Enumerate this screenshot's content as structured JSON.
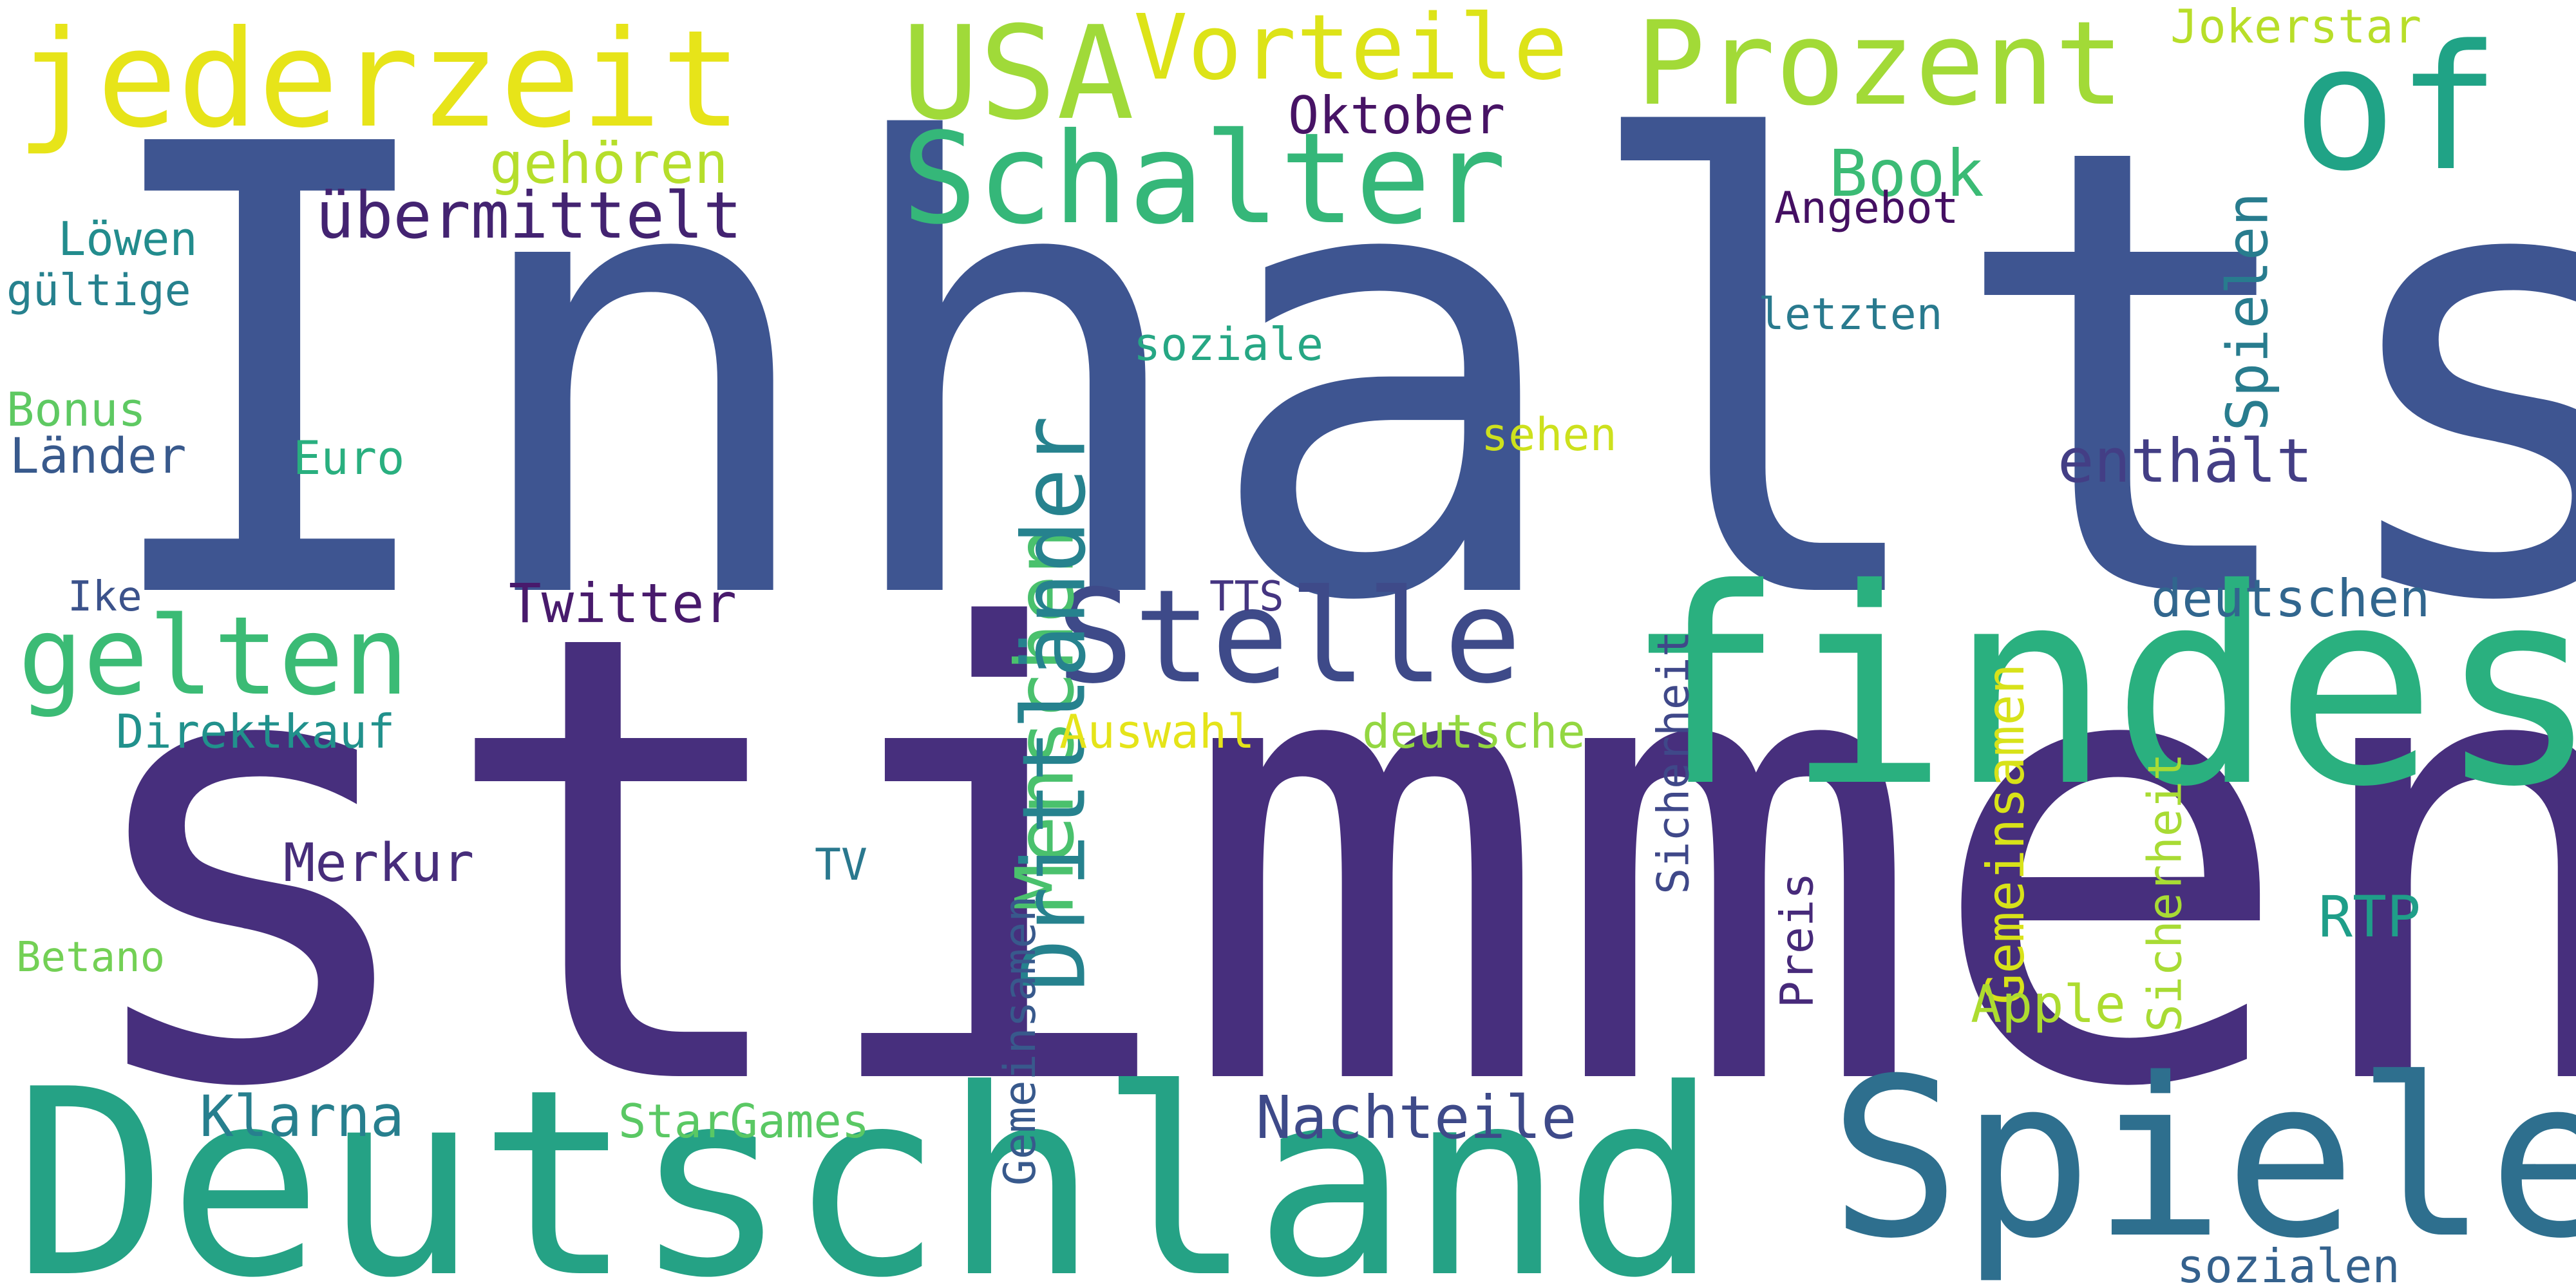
{
  "cloud": {
    "background": "#ffffff",
    "words": [
      {
        "text": "Inhalts",
        "color": "#3e5591",
        "orientation": "horizontal"
      },
      {
        "text": "stimmen",
        "color": "#472f7d",
        "orientation": "horizontal"
      },
      {
        "text": "Deutschland",
        "color": "#25a285",
        "orientation": "horizontal"
      },
      {
        "text": "findest",
        "color": "#2ab07f",
        "orientation": "horizontal"
      },
      {
        "text": "Spiele",
        "color": "#2e6f8e",
        "orientation": "horizontal"
      },
      {
        "text": "Schalter",
        "color": "#35b779",
        "orientation": "horizontal"
      },
      {
        "text": "Stelle",
        "color": "#3e4a89",
        "orientation": "horizontal"
      },
      {
        "text": "jederzeit",
        "color": "#e7e419",
        "orientation": "horizontal"
      },
      {
        "text": "USA",
        "color": "#a0da39",
        "orientation": "horizontal"
      },
      {
        "text": "Prozent",
        "color": "#a2da37",
        "orientation": "horizontal"
      },
      {
        "text": "Vorteile",
        "color": "#dde318",
        "orientation": "horizontal"
      },
      {
        "text": "of",
        "color": "#20a386",
        "orientation": "horizontal"
      },
      {
        "text": "gelten",
        "color": "#3bbb75",
        "orientation": "horizontal"
      },
      {
        "text": "Gemeinsamen",
        "color": "#d8e219",
        "orientation": "vertical"
      },
      {
        "text": "Jokerstar",
        "color": "#b8de29",
        "orientation": "horizontal"
      },
      {
        "text": "Menschen",
        "color": "#4ac16d",
        "orientation": "vertical"
      },
      {
        "text": "Drittländer",
        "color": "#26828e",
        "orientation": "vertical"
      },
      {
        "text": "Spielen",
        "color": "#287c8e",
        "orientation": "vertical"
      },
      {
        "text": "Preis",
        "color": "#472a7a",
        "orientation": "vertical"
      },
      {
        "text": "Sicherheit",
        "color": "#a8db34",
        "orientation": "vertical"
      },
      {
        "text": "Sicherheit",
        "color": "#3f4889",
        "orientation": "vertical"
      },
      {
        "text": "Gemeinsamen",
        "color": "#38598c",
        "orientation": "vertical"
      },
      {
        "text": "übermittelt",
        "color": "#432371",
        "orientation": "horizontal"
      },
      {
        "text": "gehören",
        "color": "#b5de2b",
        "orientation": "horizontal"
      },
      {
        "text": "Oktober",
        "color": "#471365",
        "orientation": "horizontal"
      },
      {
        "text": "Book",
        "color": "#3bbb75",
        "orientation": "horizontal"
      },
      {
        "text": "Angebot",
        "color": "#440f62",
        "orientation": "horizontal"
      },
      {
        "text": "soziale",
        "color": "#26a784",
        "orientation": "horizontal"
      },
      {
        "text": "letzten",
        "color": "#297a8e",
        "orientation": "horizontal"
      },
      {
        "text": "sehen",
        "color": "#cde11d",
        "orientation": "horizontal"
      },
      {
        "text": "enthält",
        "color": "#433e85",
        "orientation": "horizontal"
      },
      {
        "text": "Löwen",
        "color": "#228c8d",
        "orientation": "horizontal"
      },
      {
        "text": "gültige",
        "color": "#26818e",
        "orientation": "horizontal"
      },
      {
        "text": "Bonus",
        "color": "#5ec962",
        "orientation": "horizontal"
      },
      {
        "text": "Länder",
        "color": "#38598c",
        "orientation": "horizontal"
      },
      {
        "text": "Euro",
        "color": "#29af7f",
        "orientation": "horizontal"
      },
      {
        "text": "Ike",
        "color": "#3b528b",
        "orientation": "horizontal"
      },
      {
        "text": "Twitter",
        "color": "#481a6c",
        "orientation": "horizontal"
      },
      {
        "text": "TTS",
        "color": "#453581",
        "orientation": "horizontal"
      },
      {
        "text": "deutschen",
        "color": "#31668e",
        "orientation": "horizontal"
      },
      {
        "text": "Direktkauf",
        "color": "#21918c",
        "orientation": "horizontal"
      },
      {
        "text": "Auswahl",
        "color": "#e5e419",
        "orientation": "horizontal"
      },
      {
        "text": "deutsche",
        "color": "#93d741",
        "orientation": "horizontal"
      },
      {
        "text": "Merkur",
        "color": "#472d7b",
        "orientation": "horizontal"
      },
      {
        "text": "TV",
        "color": "#2a788e",
        "orientation": "horizontal"
      },
      {
        "text": "RTP",
        "color": "#1f9e89",
        "orientation": "horizontal"
      },
      {
        "text": "Betano",
        "color": "#73d055",
        "orientation": "horizontal"
      },
      {
        "text": "Apple",
        "color": "#addc30",
        "orientation": "horizontal"
      },
      {
        "text": "Klarna",
        "color": "#277f8e",
        "orientation": "horizontal"
      },
      {
        "text": "StarGames",
        "color": "#5ac864",
        "orientation": "horizontal"
      },
      {
        "text": "Nachteile",
        "color": "#3e4a89",
        "orientation": "horizontal"
      },
      {
        "text": "sozialen",
        "color": "#34618d",
        "orientation": "horizontal"
      }
    ]
  }
}
